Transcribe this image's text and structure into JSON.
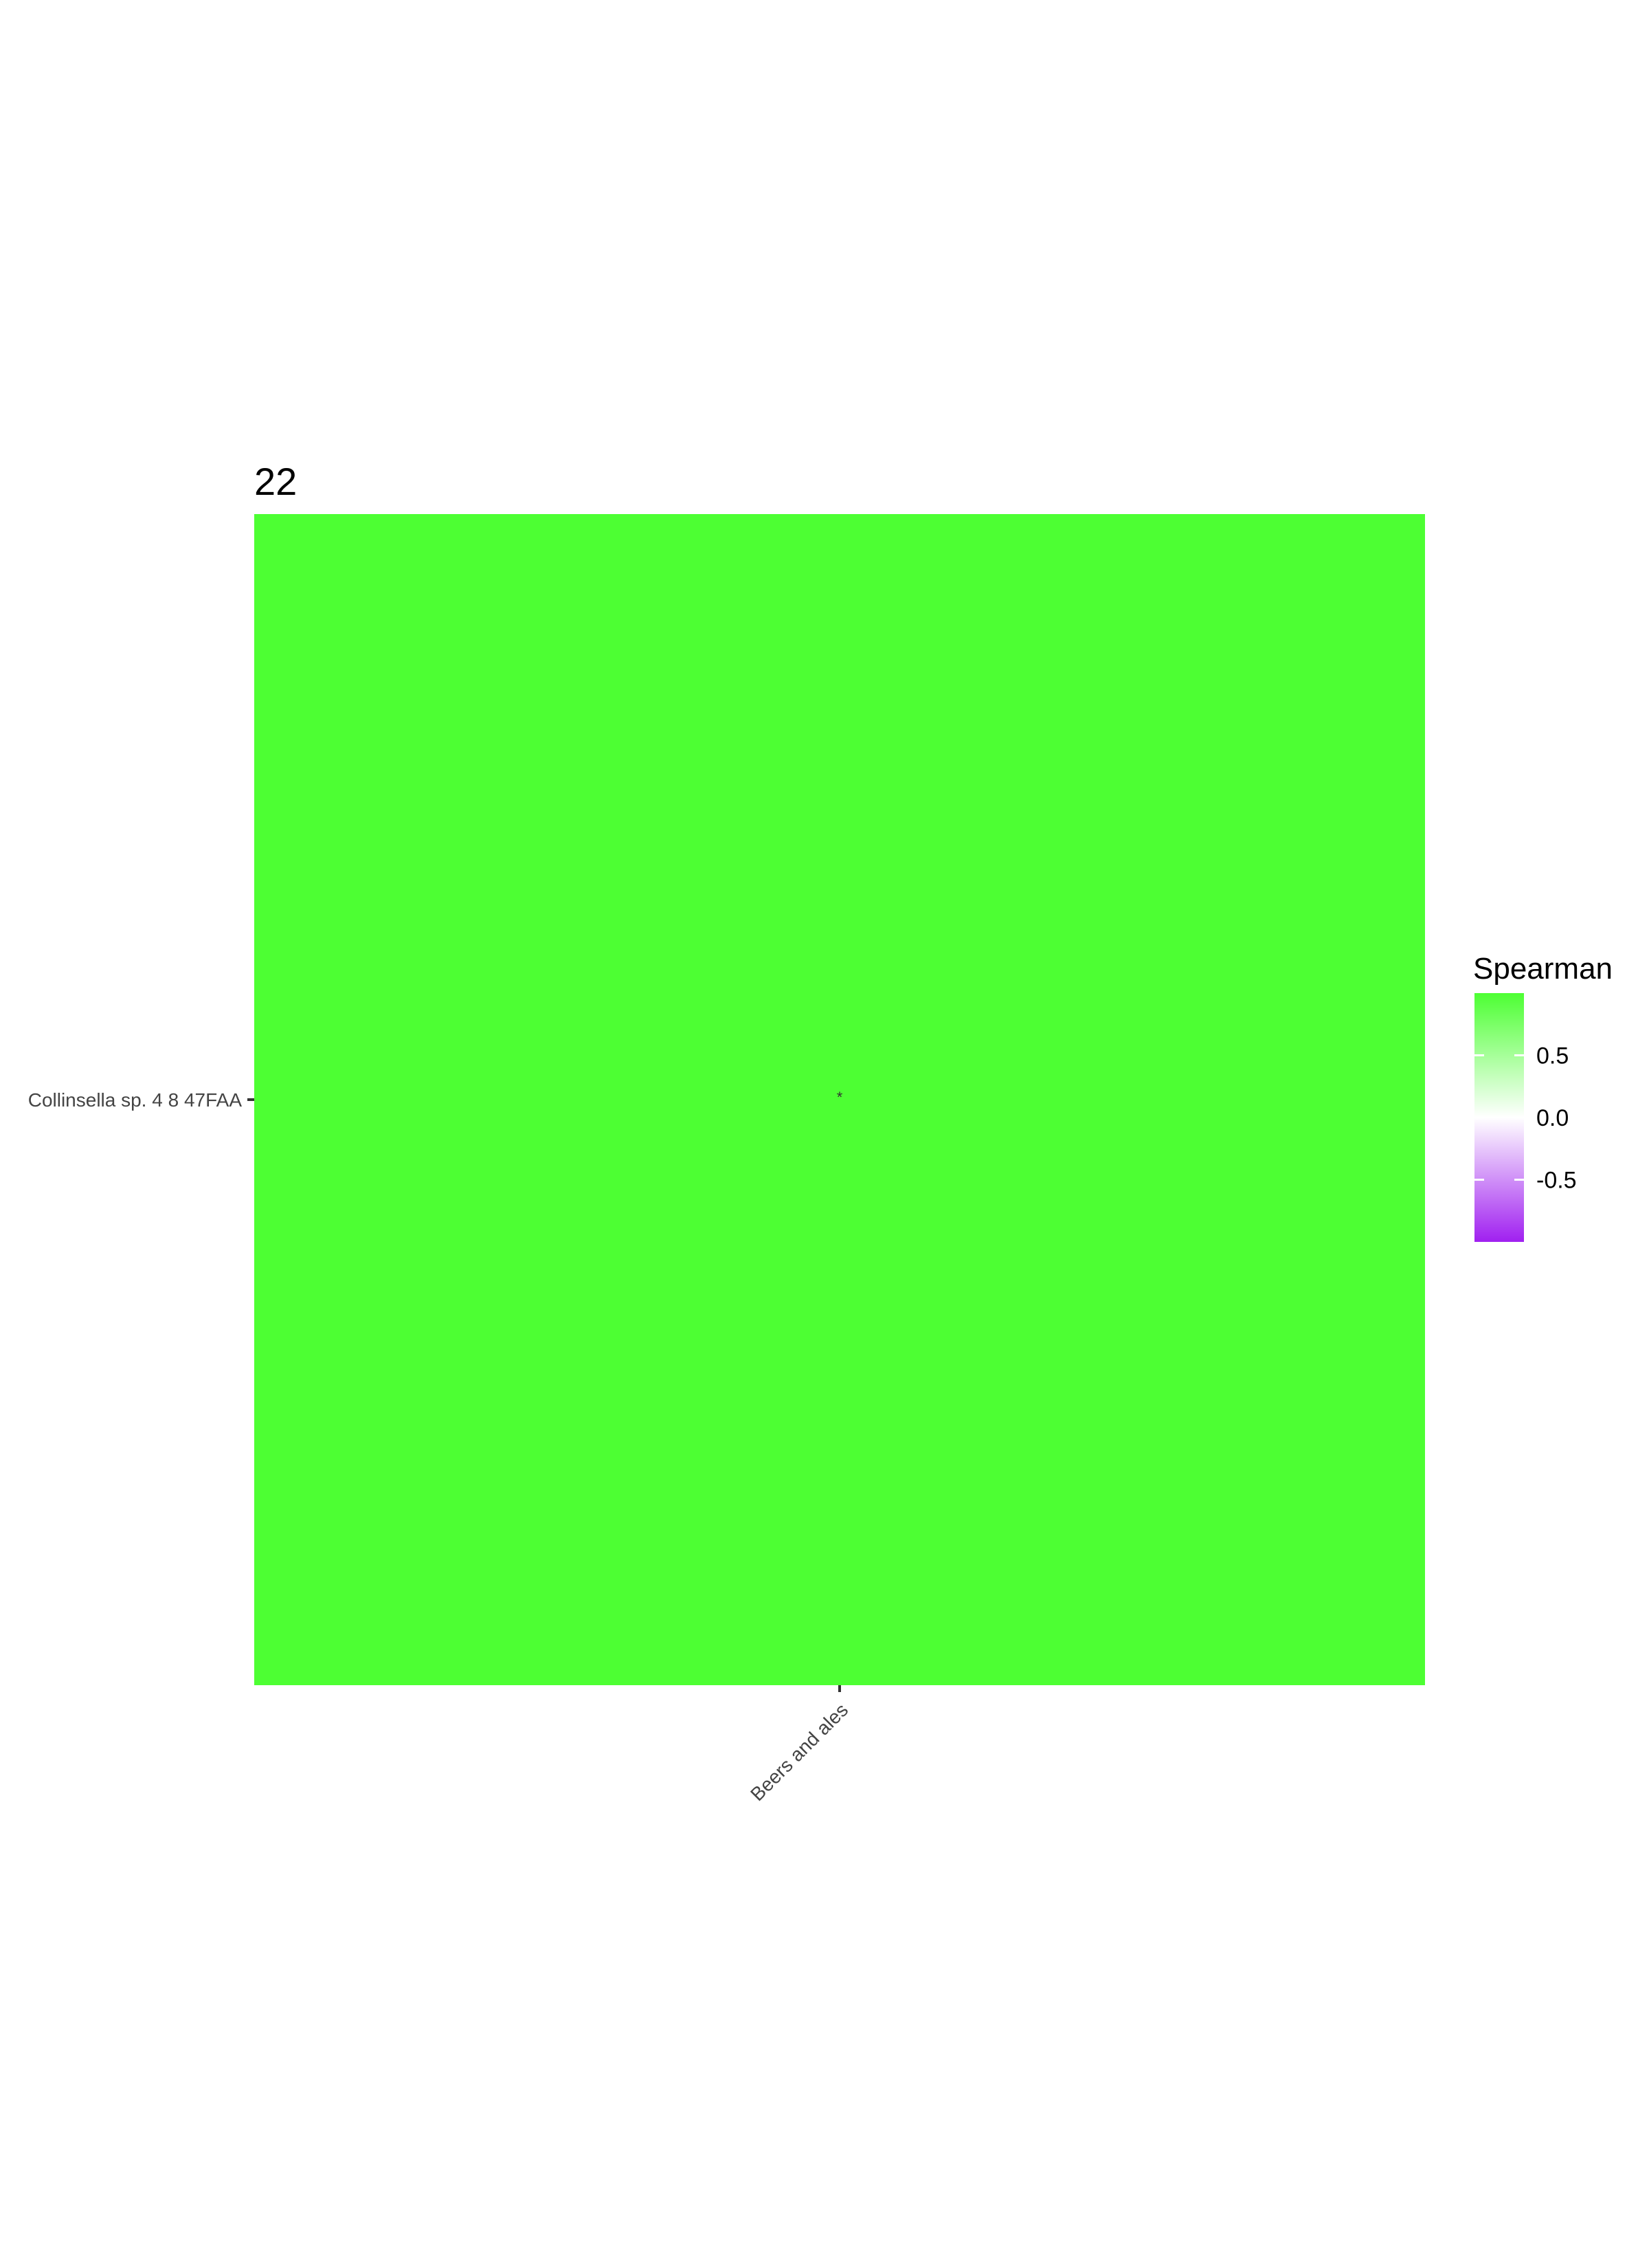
{
  "chart_data": {
    "type": "heatmap",
    "title": "22",
    "rows": [
      "Collinsella sp. 4 8 47FAA"
    ],
    "columns": [
      "Beers and ales"
    ],
    "values": [
      [
        1.0
      ]
    ],
    "annotations": [
      [
        "*"
      ]
    ],
    "legend": {
      "title": "Spearman",
      "position": "right",
      "range": [
        -1,
        1
      ],
      "ticks": [
        -0.5,
        0.0,
        0.5
      ],
      "tick_labels": [
        "-0.5",
        "0.0",
        "0.5"
      ],
      "colors": {
        "low": "#a020f0",
        "mid": "#ffffff",
        "high": "#4dff33"
      }
    },
    "grid": false
  }
}
